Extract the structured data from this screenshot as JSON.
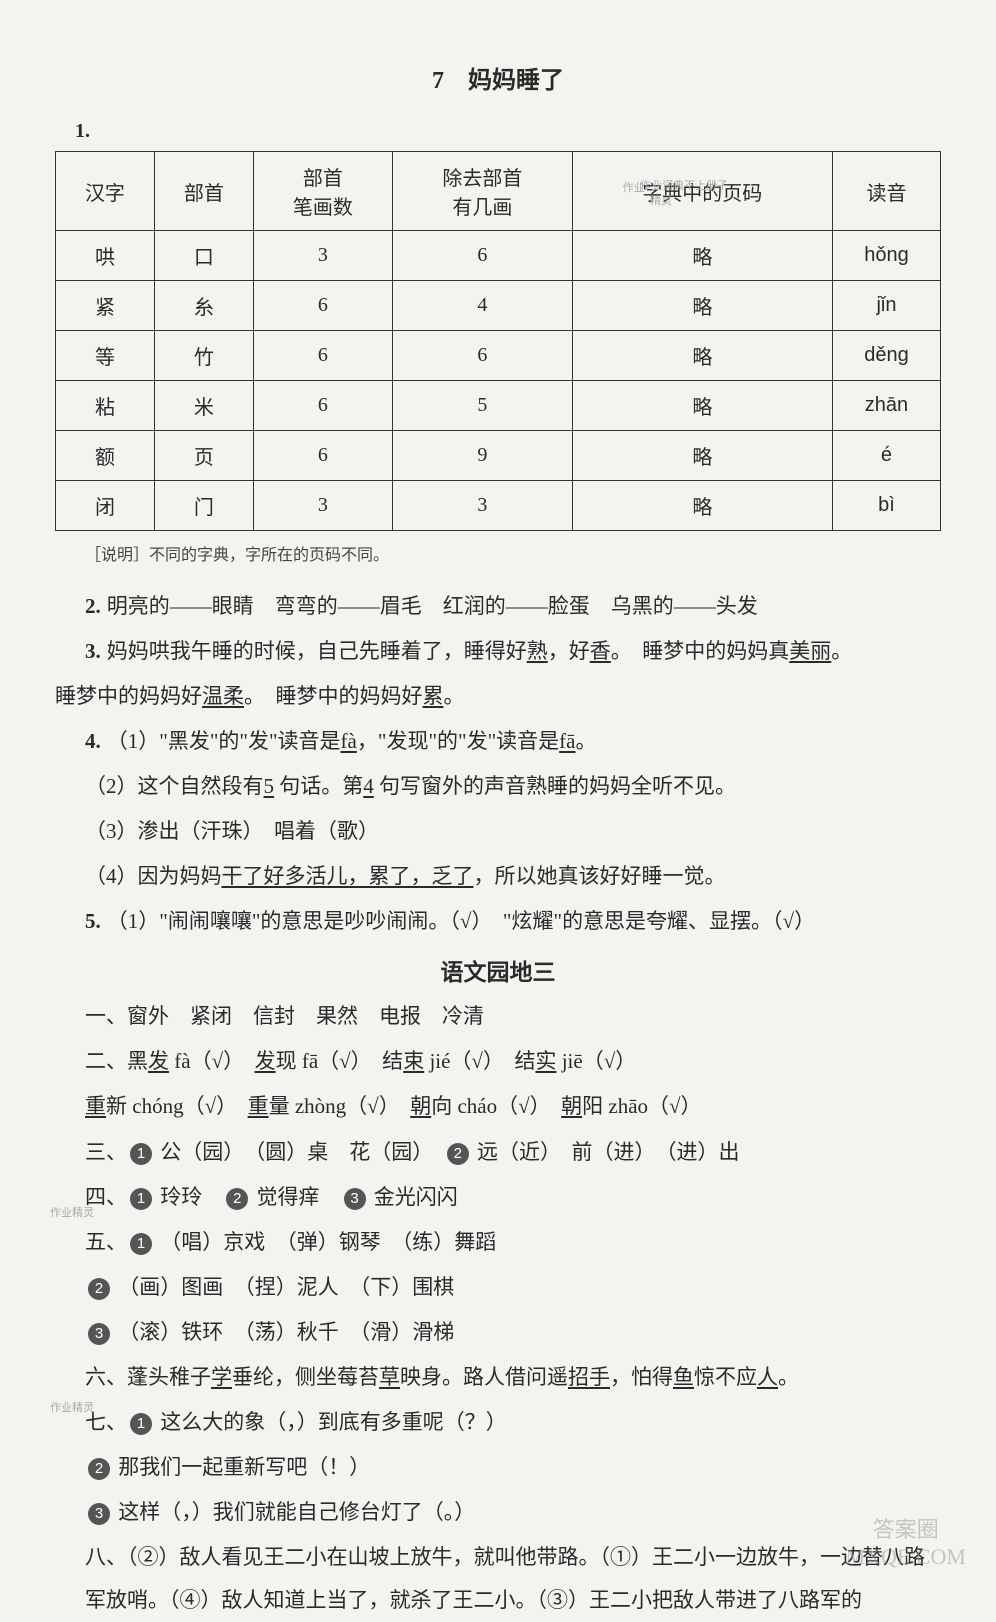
{
  "chapter_title": "7　妈妈睡了",
  "q1_label": "1.",
  "table": {
    "headers": [
      "汉字",
      "部首",
      "部首\n笔画数",
      "除去部首\n有几画",
      "字典中的页码",
      "读音"
    ],
    "rows": [
      [
        "哄",
        "口",
        "3",
        "6",
        "略",
        "hǒng"
      ],
      [
        "紧",
        "糸",
        "6",
        "4",
        "略",
        "jǐn"
      ],
      [
        "等",
        "竹",
        "6",
        "6",
        "略",
        "děng"
      ],
      [
        "粘",
        "米",
        "6",
        "5",
        "略",
        "zhān"
      ],
      [
        "额",
        "页",
        "6",
        "9",
        "略",
        "é"
      ],
      [
        "闭",
        "门",
        "3",
        "3",
        "略",
        "bì"
      ]
    ]
  },
  "note": "［说明］不同的字典，字所在的页码不同。",
  "q2": {
    "num": "2.",
    "text": "明亮的——眼睛　弯弯的——眉毛　红润的——脸蛋　乌黑的——头发"
  },
  "q3": {
    "num": "3.",
    "pre1": "妈妈哄我午睡的时候，自己先睡着了，睡得好",
    "u1": "熟",
    "mid1": "，好",
    "u2": "香",
    "mid2": "。　睡梦中的妈妈真",
    "u3": "美丽",
    "post1": "。",
    "line2_pre": "睡梦中的妈妈好",
    "line2_u1": "温柔",
    "line2_mid": "。　睡梦中的妈妈好",
    "line2_u2": "累",
    "line2_post": "。"
  },
  "q4": {
    "num": "4.",
    "sub1_pre": "（1）\"黑发\"的\"发\"读音是",
    "sub1_u1": "fà",
    "sub1_mid": "，\"发现\"的\"发\"读音是",
    "sub1_u2": "fā",
    "sub1_post": "。",
    "sub2_pre": "（2）这个自然段有",
    "sub2_u1": "5",
    "sub2_mid1": " 句话。第",
    "sub2_u2": "4",
    "sub2_post": " 句写窗外的声音熟睡的妈妈全听不见。",
    "sub3": "（3）渗出（汗珠）　唱着（歌）",
    "sub4_pre": "（4）因为妈妈",
    "sub4_u": "干了好多活儿，累了，乏了",
    "sub4_post": "，所以她真该好好睡一觉。"
  },
  "q5": {
    "num": "5.",
    "text": "（1）\"闹闹嚷嚷\"的意思是吵吵闹闹。（√）　\"炫耀\"的意思是夸耀、显摆。（√）"
  },
  "yuwenyuandi_title": "语文园地三",
  "sec1": {
    "label": "一、",
    "text": "窗外　紧闭　信封　果然　电报　冷清"
  },
  "sec2": {
    "label": "二、",
    "p1a": "黑",
    "p1u": "发",
    "p1b": " fà（√）　",
    "p2u": "发",
    "p2b": "现 fā（√）　结",
    "p3u": "束",
    "p3b": " jié（√）　结",
    "p4u": "实",
    "p4b": " jiē（√）",
    "l2_1u": "重",
    "l2_1b": "新 chóng（√）　",
    "l2_2u": "重",
    "l2_2b": "量 zhòng（√）　",
    "l2_3u": "朝",
    "l2_3b": "向 cháo（√）　",
    "l2_4u": "朝",
    "l2_4b": "阳 zhāo（√）"
  },
  "sec3": {
    "label": "三、",
    "n1": "1",
    "t1": "公（园）　（圆）桌　花（园）　",
    "n2": "2",
    "t2": "远（近）　前（进）　（进）出"
  },
  "sec4": {
    "label": "四、",
    "n1": "1",
    "t1": "玲玲　",
    "n2": "2",
    "t2": "觉得痒　",
    "n3": "3",
    "t3": "金光闪闪"
  },
  "sec5": {
    "label": "五、",
    "n1": "1",
    "t1": "（唱）京戏　（弹）钢琴　（练）舞蹈",
    "n2": "2",
    "t2": "（画）图画　（捏）泥人　（下）围棋",
    "n3": "3",
    "t3": "（滚）铁环　（荡）秋千　（滑）滑梯"
  },
  "sec6": {
    "label": "六、",
    "pre": "蓬头稚子",
    "u1": "学",
    "mid1": "垂纶，侧坐莓苔",
    "u2": "草",
    "mid2": "映身。路人借问遥",
    "u3": "招手",
    "mid3": "，怕得",
    "u4": "鱼",
    "mid4": "惊不应",
    "u5": "人",
    "post": "。"
  },
  "sec7": {
    "label": "七、",
    "n1": "1",
    "t1": "这么大的象（，）到底有多重呢（？）",
    "n2": "2",
    "t2": "那我们一起重新写吧（！）",
    "n3": "3",
    "t3": "这样（，）我们就能自己修台灯了（。）"
  },
  "sec8": {
    "label": "八、",
    "text": "（②）敌人看见王二小在山坡上放牛，就叫他带路。（①）王二小一边放牛，一边替八路军放哨。（④）敌人知道上当了，就杀了王二小。（③）王二小把敌人带进了八路军的"
  },
  "watermark_br": "答案圈\nMXQE.COM",
  "stamps": {
    "s1": "作业",
    "s2": "作业词典不上册子",
    "s3": "精灵",
    "s4": "作业精灵",
    "s5": "作业精灵"
  }
}
